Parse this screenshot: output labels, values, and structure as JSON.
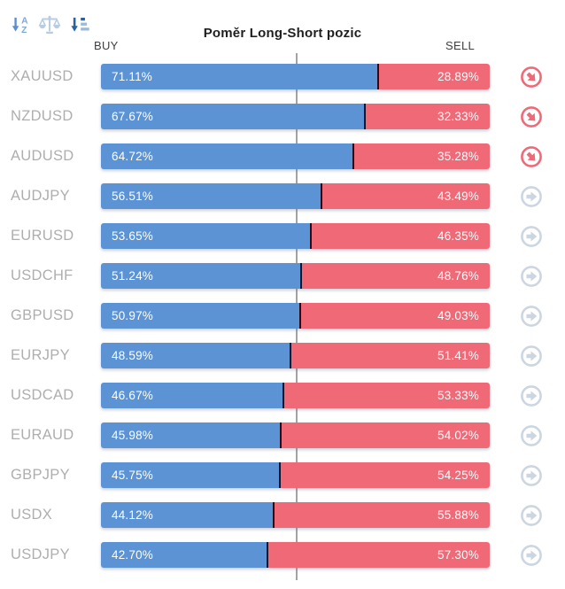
{
  "widget": {
    "title": "Poměr Long-Short pozic",
    "buy_label": "BUY",
    "sell_label": "SELL"
  },
  "toolbar": {
    "icons": [
      "sort-alphabetical-icon",
      "scale-balance-icon",
      "sort-amount-icon"
    ]
  },
  "colors": {
    "buy": "#5b93d5",
    "sell": "#ef6977",
    "divider": "#23101c",
    "midline": "#a3a3a3",
    "symbol_text": "#aeaeae",
    "header_text": "#404040",
    "title_text": "#1f1f1f",
    "neutral_icon": "#ccd6e1",
    "toolbar_blue": "#5b8fcd",
    "toolbar_light_blue": "#b7cce5",
    "toolbar_dark_blue": "#29639f"
  },
  "rows": [
    {
      "symbol": "XAUUSD",
      "buy": 71.11,
      "sell": 28.89,
      "buy_label": "71.11%",
      "sell_label": "28.89%",
      "signal": "sell",
      "icon": "arrow-down-right-icon"
    },
    {
      "symbol": "NZDUSD",
      "buy": 67.67,
      "sell": 32.33,
      "buy_label": "67.67%",
      "sell_label": "32.33%",
      "signal": "sell",
      "icon": "arrow-down-right-icon"
    },
    {
      "symbol": "AUDUSD",
      "buy": 64.72,
      "sell": 35.28,
      "buy_label": "64.72%",
      "sell_label": "35.28%",
      "signal": "sell",
      "icon": "arrow-down-right-icon"
    },
    {
      "symbol": "AUDJPY",
      "buy": 56.51,
      "sell": 43.49,
      "buy_label": "56.51%",
      "sell_label": "43.49%",
      "signal": "neutral",
      "icon": "arrow-right-icon"
    },
    {
      "symbol": "EURUSD",
      "buy": 53.65,
      "sell": 46.35,
      "buy_label": "53.65%",
      "sell_label": "46.35%",
      "signal": "neutral",
      "icon": "arrow-right-icon"
    },
    {
      "symbol": "USDCHF",
      "buy": 51.24,
      "sell": 48.76,
      "buy_label": "51.24%",
      "sell_label": "48.76%",
      "signal": "neutral",
      "icon": "arrow-right-icon"
    },
    {
      "symbol": "GBPUSD",
      "buy": 50.97,
      "sell": 49.03,
      "buy_label": "50.97%",
      "sell_label": "49.03%",
      "signal": "neutral",
      "icon": "arrow-right-icon"
    },
    {
      "symbol": "EURJPY",
      "buy": 48.59,
      "sell": 51.41,
      "buy_label": "48.59%",
      "sell_label": "51.41%",
      "signal": "neutral",
      "icon": "arrow-right-icon"
    },
    {
      "symbol": "USDCAD",
      "buy": 46.67,
      "sell": 53.33,
      "buy_label": "46.67%",
      "sell_label": "53.33%",
      "signal": "neutral",
      "icon": "arrow-right-icon"
    },
    {
      "symbol": "EURAUD",
      "buy": 45.98,
      "sell": 54.02,
      "buy_label": "45.98%",
      "sell_label": "54.02%",
      "signal": "neutral",
      "icon": "arrow-right-icon"
    },
    {
      "symbol": "GBPJPY",
      "buy": 45.75,
      "sell": 54.25,
      "buy_label": "45.75%",
      "sell_label": "54.25%",
      "signal": "neutral",
      "icon": "arrow-right-icon"
    },
    {
      "symbol": "USDX",
      "buy": 44.12,
      "sell": 55.88,
      "buy_label": "44.12%",
      "sell_label": "55.88%",
      "signal": "neutral",
      "icon": "arrow-right-icon"
    },
    {
      "symbol": "USDJPY",
      "buy": 42.7,
      "sell": 57.3,
      "buy_label": "42.70%",
      "sell_label": "57.30%",
      "signal": "neutral",
      "icon": "arrow-right-icon"
    }
  ],
  "chart_data": {
    "type": "bar",
    "orientation": "horizontal",
    "stacked": true,
    "title": "Poměr Long-Short pozic",
    "categories": [
      "XAUUSD",
      "NZDUSD",
      "AUDUSD",
      "AUDJPY",
      "EURUSD",
      "USDCHF",
      "GBPUSD",
      "EURJPY",
      "USDCAD",
      "EURAUD",
      "GBPJPY",
      "USDX",
      "USDJPY"
    ],
    "series": [
      {
        "name": "BUY",
        "color": "#5b93d5",
        "values": [
          71.11,
          67.67,
          64.72,
          56.51,
          53.65,
          51.24,
          50.97,
          48.59,
          46.67,
          45.98,
          45.75,
          44.12,
          42.7
        ]
      },
      {
        "name": "SELL",
        "color": "#ef6977",
        "values": [
          28.89,
          32.33,
          35.28,
          43.49,
          46.35,
          48.76,
          49.03,
          51.41,
          53.33,
          54.02,
          54.25,
          55.88,
          57.3
        ]
      }
    ],
    "unit": "%",
    "xlim": [
      0,
      100
    ],
    "midline": 50,
    "legend_position": "top",
    "value_labels": "inside"
  }
}
